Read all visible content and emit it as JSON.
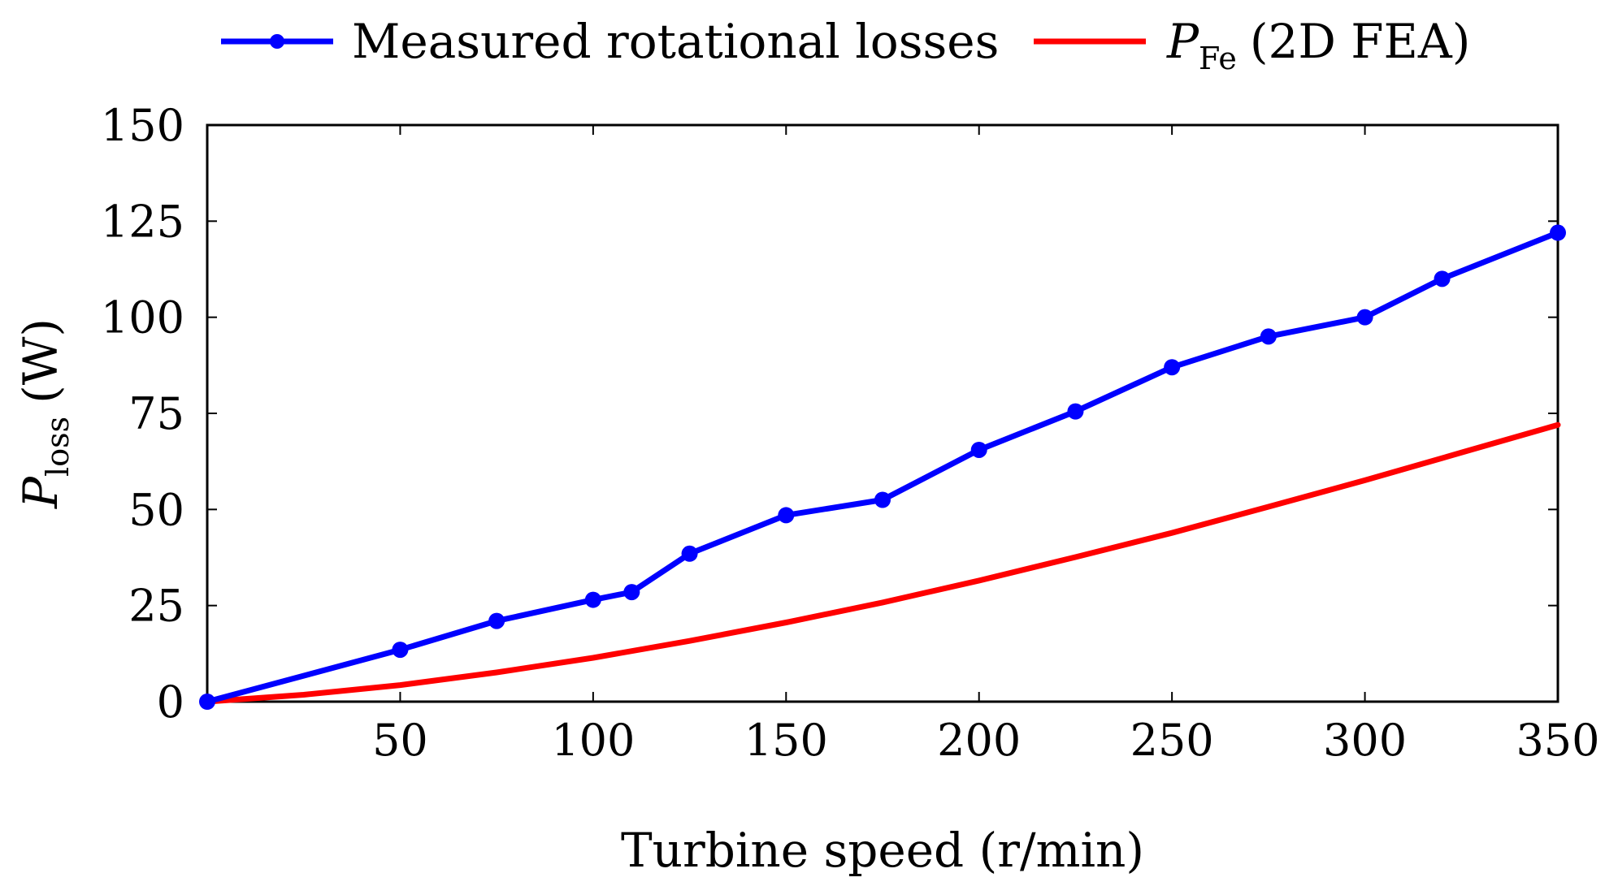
{
  "chart_data": {
    "type": "line",
    "title": "",
    "xlabel": "Turbine speed (r/min)",
    "ylabel": {
      "main": "P",
      "sub": "loss",
      "unit": "(W)"
    },
    "xlim": [
      0,
      350
    ],
    "ylim": [
      0,
      150
    ],
    "xticks": [
      50,
      100,
      150,
      200,
      250,
      300,
      350
    ],
    "yticks": [
      0,
      25,
      50,
      75,
      100,
      125,
      150
    ],
    "grid": false,
    "legend_position": "top-center",
    "series": [
      {
        "name": "Measured rotational losses",
        "color": "#0000ff",
        "marker": "circle",
        "x": [
          0,
          50,
          75,
          100,
          110,
          125,
          150,
          175,
          200,
          225,
          250,
          275,
          300,
          320,
          350
        ],
        "y": [
          0,
          13.5,
          21,
          26.5,
          28.5,
          38.5,
          48.5,
          52.5,
          65.5,
          75.5,
          87,
          95,
          100,
          110,
          122
        ]
      },
      {
        "name": "P_Fe (2D FEA)",
        "label_main": "P",
        "label_sub": "Fe",
        "label_rest": "(2D FEA)",
        "color": "#ff0000",
        "marker": "none",
        "x": [
          0,
          25,
          50,
          75,
          100,
          125,
          150,
          175,
          200,
          225,
          250,
          275,
          300,
          325,
          350
        ],
        "y": [
          0,
          1.8,
          4.3,
          7.6,
          11.4,
          15.8,
          20.6,
          25.8,
          31.5,
          37.6,
          43.9,
          50.7,
          57.6,
          64.8,
          72
        ]
      }
    ]
  }
}
